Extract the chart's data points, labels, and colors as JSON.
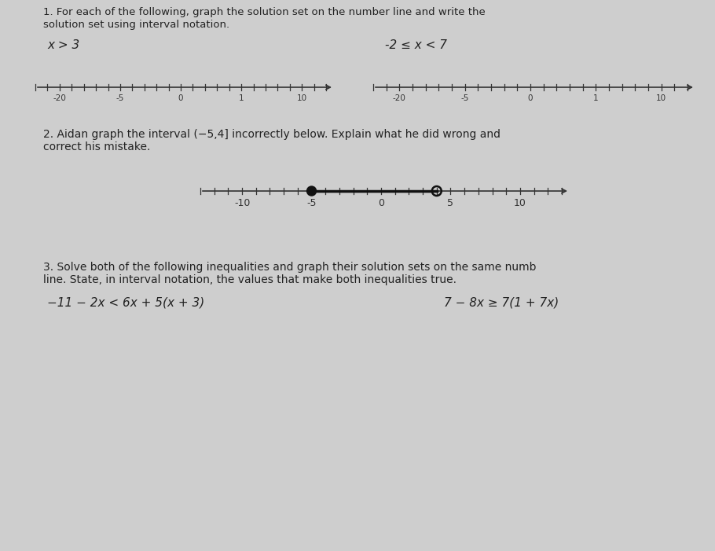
{
  "bg_color": "#cecece",
  "text_color": "#222222",
  "title1": "1. For each of the following, graph the solution set on the number line and write the",
  "title1b": "solution set using interval notation.",
  "label1a": "x > 3",
  "label1b": "-2 ≤ x < 7",
  "title2": "2. Aidan graph the interval (−5,4] incorrectly below. Explain what he did wrong and",
  "title2b": "correct his mistake.",
  "title3": "3. Solve both of the following inequalities and graph their solution sets on the same numb",
  "title3b": "line. State, in interval notation, the values that make both inequalities true.",
  "eq3a": "−11 − 2x < 6x + 5(x + 3)",
  "eq3b": "7 − 8x ≥ 7(1 + 7x)",
  "line_color": "#333333",
  "dot_color": "#111111"
}
